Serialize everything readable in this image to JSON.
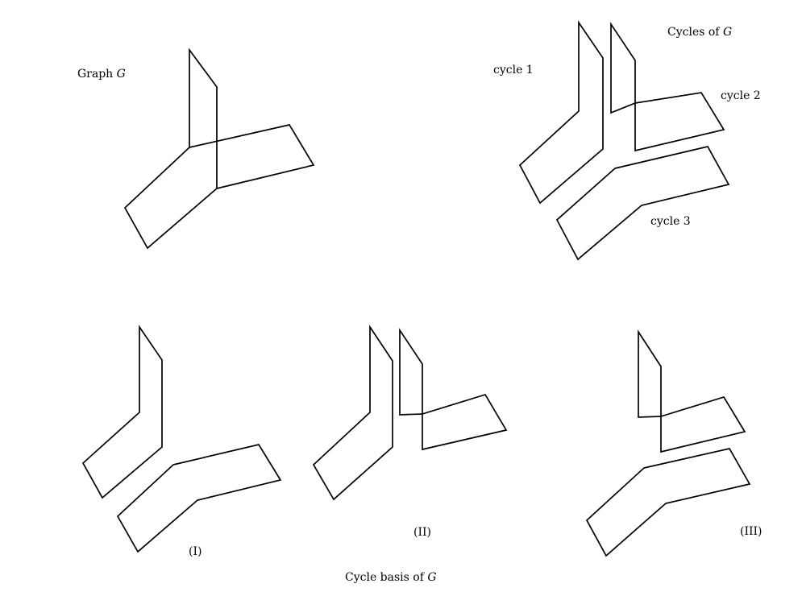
{
  "labels": {
    "graph_prefix": "Graph",
    "graph_var": "G",
    "cycles_prefix": "Cycles of",
    "cycles_var": "G",
    "cycle1": "cycle 1",
    "cycle2": "cycle 2",
    "cycle3": "cycle 3",
    "basis_I": "(I)",
    "basis_II": "(II)",
    "basis_III": "(III)",
    "basis_prefix": "Cycle basis of",
    "basis_var": "G"
  }
}
